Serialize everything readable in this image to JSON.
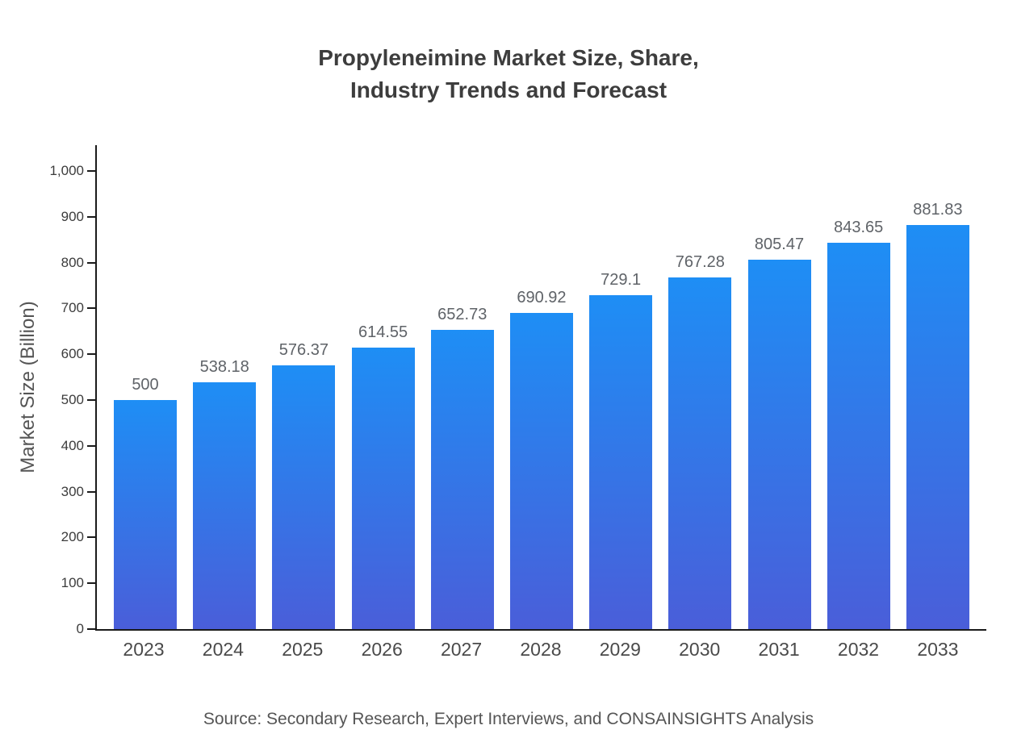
{
  "title_lines": [
    "Propyleneimine Market Size, Share,",
    "Industry Trends and Forecast"
  ],
  "source": "Source: Secondary Research, Expert Interviews, and CONSAINSIGHTS Analysis",
  "chart_data": {
    "type": "bar",
    "title": "Propyleneimine Market Size, Share, Industry Trends and Forecast",
    "categories": [
      "2023",
      "2024",
      "2025",
      "2026",
      "2027",
      "2028",
      "2029",
      "2030",
      "2031",
      "2032",
      "2033"
    ],
    "values": [
      500,
      538.18,
      576.37,
      614.55,
      652.73,
      690.92,
      729.1,
      767.28,
      805.47,
      843.65,
      881.83
    ],
    "value_labels": [
      "500",
      "538.18",
      "576.37",
      "614.55",
      "652.73",
      "690.92",
      "729.1",
      "767.28",
      "805.47",
      "843.65",
      "881.83"
    ],
    "xlabel": "",
    "ylabel": "Market Size (Billion)",
    "ylim": [
      0,
      1000
    ],
    "yticks": [
      0,
      100,
      200,
      300,
      400,
      500,
      600,
      700,
      800,
      900,
      1000
    ],
    "ytick_labels": [
      "0",
      "100",
      "200",
      "300",
      "400",
      "500",
      "600",
      "700",
      "800",
      "900",
      "1,000"
    ],
    "grid": false,
    "legend": false,
    "layout": {
      "legend_position": "none",
      "bar_label_position": "above"
    },
    "colors": {
      "bar_top": "#1E8EF5",
      "bar_bottom": "#4A5ED9",
      "axis": "#1a1a1a",
      "title_text": "#3d3d3d",
      "label_text": "#5f6368",
      "tick_text": "#3c3c3c",
      "source_text": "#555555"
    }
  }
}
